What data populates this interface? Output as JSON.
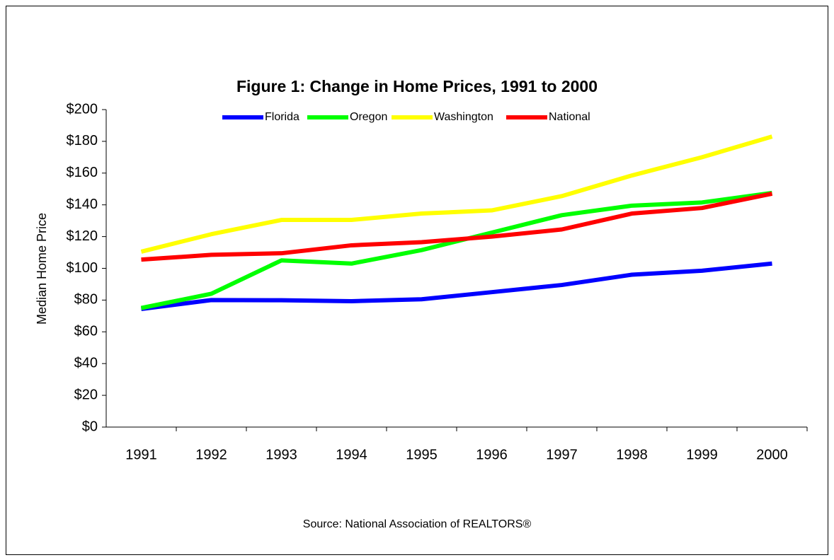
{
  "chart_data": {
    "type": "line",
    "title": "Figure 1: Change in Home Prices, 1991 to 2000",
    "ylabel": "Median Home Price",
    "source": "Source: National Association of REALTORS®",
    "categories": [
      "1991",
      "1992",
      "1993",
      "1994",
      "1995",
      "1996",
      "1997",
      "1998",
      "1999",
      "2000"
    ],
    "series": [
      {
        "name": "Florida",
        "color": "#0000ff",
        "values": [
          74.4,
          80,
          79.9,
          79.3,
          80.5,
          85,
          89.5,
          96,
          98.5,
          103
        ]
      },
      {
        "name": "Oregon",
        "color": "#00ff00",
        "values": [
          75,
          84,
          105,
          103,
          111.5,
          122.5,
          133.5,
          139.5,
          141.5,
          147.5
        ]
      },
      {
        "name": "Washington",
        "color": "#ffff00",
        "values": [
          110.5,
          121.5,
          130.5,
          130.5,
          134.5,
          136.5,
          145.5,
          158.5,
          170,
          183
        ]
      },
      {
        "name": "National",
        "color": "#ff0000",
        "values": [
          105.5,
          108.5,
          109.5,
          114.5,
          116.5,
          120,
          124.5,
          134.5,
          138,
          147
        ]
      }
    ],
    "ylim": [
      0,
      200
    ],
    "yticks": [
      {
        "value": 0,
        "label": "$0"
      },
      {
        "value": 20,
        "label": "$20"
      },
      {
        "value": 40,
        "label": "$40"
      },
      {
        "value": 60,
        "label": "$60"
      },
      {
        "value": 80,
        "label": "$80"
      },
      {
        "value": 100,
        "label": "$100"
      },
      {
        "value": 120,
        "label": "$120"
      },
      {
        "value": 140,
        "label": "$140"
      },
      {
        "value": 160,
        "label": "$160"
      },
      {
        "value": 180,
        "label": "$180"
      },
      {
        "value": 200,
        "label": "$200"
      }
    ],
    "grid": false,
    "legend": "top"
  }
}
